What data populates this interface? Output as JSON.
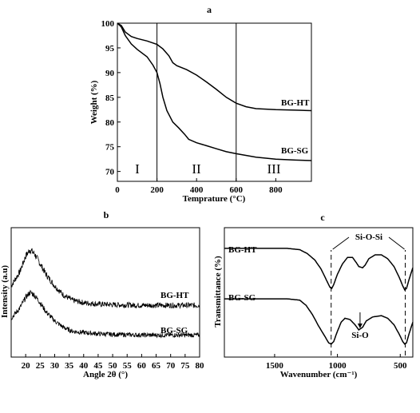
{
  "chart_data": [
    {
      "panel": "a",
      "type": "line",
      "xlabel": "Temprature (°C)",
      "ylabel": "Weight (%)",
      "xlim": [
        0,
        980
      ],
      "ylim": [
        68,
        100
      ],
      "xticks": [
        "0",
        "200",
        "400",
        "600",
        "800"
      ],
      "yticks": [
        "70",
        "75",
        "80",
        "85",
        "90",
        "95",
        "100"
      ],
      "vlines": [
        200,
        600
      ],
      "regions": [
        "I",
        "II",
        "III"
      ],
      "series": [
        {
          "name": "BG-HT",
          "points": [
            [
              0,
              100
            ],
            [
              20,
              99.5
            ],
            [
              40,
              98.2
            ],
            [
              70,
              97.3
            ],
            [
              100,
              96.9
            ],
            [
              150,
              96.4
            ],
            [
              200,
              95.7
            ],
            [
              230,
              94.8
            ],
            [
              260,
              93.4
            ],
            [
              280,
              92.0
            ],
            [
              300,
              91.4
            ],
            [
              350,
              90.6
            ],
            [
              400,
              89.5
            ],
            [
              450,
              88.1
            ],
            [
              500,
              86.6
            ],
            [
              550,
              85.0
            ],
            [
              600,
              83.8
            ],
            [
              650,
              83.1
            ],
            [
              700,
              82.7
            ],
            [
              800,
              82.5
            ],
            [
              900,
              82.4
            ],
            [
              980,
              82.3
            ]
          ]
        },
        {
          "name": "BG-SG",
          "points": [
            [
              0,
              100
            ],
            [
              20,
              99.2
            ],
            [
              40,
              97.5
            ],
            [
              70,
              95.8
            ],
            [
              100,
              94.7
            ],
            [
              150,
              93.2
            ],
            [
              180,
              91.5
            ],
            [
              200,
              90.0
            ],
            [
              215,
              87.8
            ],
            [
              230,
              85.0
            ],
            [
              250,
              82.3
            ],
            [
              280,
              80.0
            ],
            [
              310,
              78.8
            ],
            [
              340,
              77.5
            ],
            [
              360,
              76.5
            ],
            [
              400,
              75.8
            ],
            [
              450,
              75.2
            ],
            [
              500,
              74.6
            ],
            [
              550,
              74.0
            ],
            [
              600,
              73.6
            ],
            [
              700,
              72.9
            ],
            [
              800,
              72.5
            ],
            [
              900,
              72.3
            ],
            [
              980,
              72.2
            ]
          ]
        }
      ]
    },
    {
      "panel": "b",
      "type": "line",
      "xlabel": "Angle 2θ (°)",
      "ylabel": "Intensity (a.u)",
      "xlim": [
        15,
        80
      ],
      "xticks": [
        "20",
        "25",
        "30",
        "35",
        "40",
        "45",
        "50",
        "55",
        "60",
        "65",
        "70",
        "75",
        "80"
      ],
      "series": [
        {
          "name": "BG-HT",
          "points": [
            [
              15,
              0.55
            ],
            [
              18,
              0.66
            ],
            [
              20,
              0.78
            ],
            [
              21.5,
              0.83
            ],
            [
              23,
              0.8
            ],
            [
              25,
              0.72
            ],
            [
              27,
              0.64
            ],
            [
              30,
              0.55
            ],
            [
              33,
              0.48
            ],
            [
              36,
              0.44
            ],
            [
              40,
              0.42
            ],
            [
              45,
              0.41
            ],
            [
              50,
              0.405
            ],
            [
              60,
              0.4
            ],
            [
              70,
              0.4
            ],
            [
              80,
              0.4
            ]
          ]
        },
        {
          "name": "BG-SG",
          "points": [
            [
              15,
              0.3
            ],
            [
              18,
              0.38
            ],
            [
              20,
              0.46
            ],
            [
              21.5,
              0.5
            ],
            [
              23,
              0.48
            ],
            [
              25,
              0.42
            ],
            [
              27,
              0.35
            ],
            [
              30,
              0.28
            ],
            [
              33,
              0.23
            ],
            [
              36,
              0.2
            ],
            [
              40,
              0.19
            ],
            [
              45,
              0.18
            ],
            [
              50,
              0.175
            ],
            [
              60,
              0.17
            ],
            [
              70,
              0.17
            ],
            [
              80,
              0.17
            ]
          ]
        }
      ]
    },
    {
      "panel": "c",
      "type": "line",
      "xlabel": "Wavenumber (cm⁻¹)",
      "ylabel": "Transmittance (%)",
      "xlim": [
        1900,
        400
      ],
      "xticks": [
        "1500",
        "1000",
        "500"
      ],
      "vlines": [
        1050,
        460
      ],
      "annotations": [
        "Si-O-Si",
        "Si-O"
      ],
      "series": [
        {
          "name": "BG-HT",
          "points": [
            [
              1900,
              0.84
            ],
            [
              1400,
              0.84
            ],
            [
              1300,
              0.83
            ],
            [
              1240,
              0.8
            ],
            [
              1180,
              0.75
            ],
            [
              1130,
              0.68
            ],
            [
              1090,
              0.6
            ],
            [
              1060,
              0.54
            ],
            [
              1045,
              0.53
            ],
            [
              1030,
              0.56
            ],
            [
              1000,
              0.64
            ],
            [
              960,
              0.72
            ],
            [
              920,
              0.77
            ],
            [
              880,
              0.77
            ],
            [
              850,
              0.73
            ],
            [
              830,
              0.7
            ],
            [
              800,
              0.69
            ],
            [
              780,
              0.71
            ],
            [
              750,
              0.76
            ],
            [
              700,
              0.79
            ],
            [
              650,
              0.79
            ],
            [
              600,
              0.76
            ],
            [
              550,
              0.7
            ],
            [
              510,
              0.62
            ],
            [
              480,
              0.55
            ],
            [
              465,
              0.52
            ],
            [
              450,
              0.53
            ],
            [
              430,
              0.6
            ],
            [
              410,
              0.66
            ],
            [
              400,
              0.69
            ]
          ]
        },
        {
          "name": "BG-SG",
          "points": [
            [
              1900,
              0.45
            ],
            [
              1400,
              0.45
            ],
            [
              1300,
              0.44
            ],
            [
              1250,
              0.4
            ],
            [
              1200,
              0.33
            ],
            [
              1150,
              0.24
            ],
            [
              1100,
              0.16
            ],
            [
              1070,
              0.11
            ],
            [
              1050,
              0.1
            ],
            [
              1030,
              0.12
            ],
            [
              1000,
              0.2
            ],
            [
              970,
              0.27
            ],
            [
              940,
              0.3
            ],
            [
              900,
              0.29
            ],
            [
              860,
              0.25
            ],
            [
              830,
              0.21
            ],
            [
              800,
              0.23
            ],
            [
              770,
              0.28
            ],
            [
              720,
              0.31
            ],
            [
              650,
              0.32
            ],
            [
              600,
              0.3
            ],
            [
              550,
              0.25
            ],
            [
              510,
              0.18
            ],
            [
              480,
              0.12
            ],
            [
              465,
              0.1
            ],
            [
              450,
              0.11
            ],
            [
              430,
              0.18
            ],
            [
              410,
              0.24
            ],
            [
              400,
              0.27
            ]
          ]
        }
      ]
    }
  ],
  "labels": {
    "panel_a": "a",
    "panel_b": "b",
    "panel_c": "c",
    "region_1": "I",
    "region_2": "II",
    "region_3": "III",
    "a_series_1": "BG-HT",
    "a_series_2": "BG-SG",
    "b_series_1": "BG-HT",
    "b_series_2": "BG-SG",
    "c_series_1": "BG-HT",
    "c_series_2": "BG-SG",
    "c_annot_1": "Si-O-Si",
    "c_annot_2": "Si-O"
  }
}
